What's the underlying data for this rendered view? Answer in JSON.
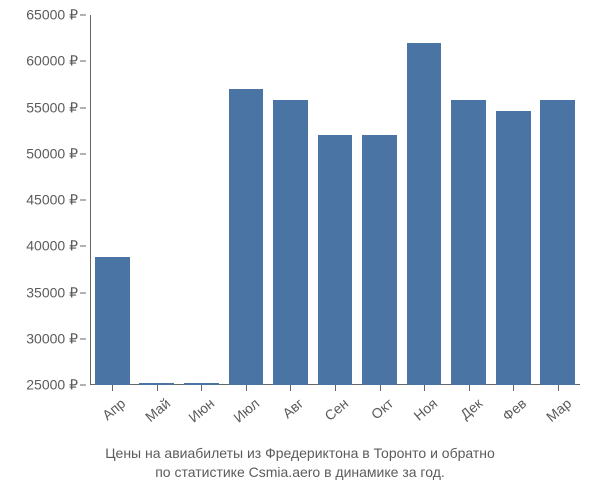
{
  "chart": {
    "type": "bar",
    "categories": [
      "Апр",
      "Май",
      "Июн",
      "Июл",
      "Авг",
      "Сен",
      "Окт",
      "Ноя",
      "Дек",
      "Фев",
      "Мар"
    ],
    "values": [
      38800,
      25200,
      25200,
      57000,
      55800,
      52000,
      52000,
      62000,
      55800,
      54600,
      55800
    ],
    "bar_color": "#4a74a4",
    "ylim_min": 25000,
    "ylim_max": 65000,
    "ytick_step": 5000,
    "currency_suffix": " ₽",
    "axis_color": "#666666",
    "tick_font_color": "#5b5b5b",
    "tick_fontsize": 14,
    "background_color": "#ffffff",
    "bar_width_ratio": 0.78,
    "caption_line1": "Цены на авиабилеты из Фредериктона в Торонто и обратно",
    "caption_line2": "по статистике Csmia.aero в динамике за год.",
    "caption_fontsize": 14,
    "caption_color": "#5b5b5b"
  }
}
